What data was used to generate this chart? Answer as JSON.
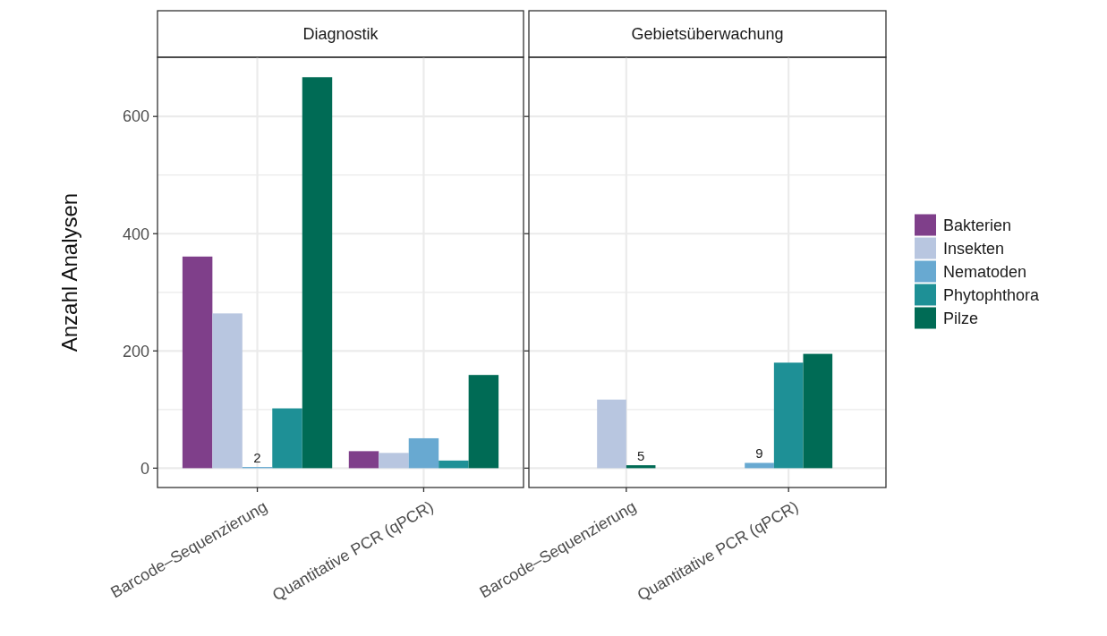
{
  "chart_data": [
    {
      "type": "bar",
      "title": "Diagnostik",
      "ylabel": "Anzahl Analysen",
      "categories": [
        "Barcode–Sequenzierung",
        "Quantitative PCR (qPCR)"
      ],
      "ylim": [
        -33,
        701
      ],
      "yticks": [
        0,
        {
          "value": 100,
          "label": null
        },
        200,
        {
          "value": 300,
          "label": null
        },
        400,
        {
          "value": 500,
          "label": null
        },
        600
      ],
      "grid": true,
      "series": [
        {
          "color": "#7f3f8a",
          "values": [
            361,
            29
          ]
        },
        {
          "color": "#b8c6e0",
          "values": [
            264,
            26
          ]
        },
        {
          "color": "#68a9d1",
          "values": [
            2,
            51
          ],
          "value_labels": [
            "2",
            null
          ]
        },
        {
          "color": "#1e9096",
          "values": [
            102,
            13
          ]
        },
        {
          "color": "#006b55",
          "values": [
            667,
            159
          ]
        }
      ]
    },
    {
      "type": "bar",
      "title": "Gebietsüberwachung",
      "categories": [
        "Barcode–Sequenzierung",
        "Quantitative PCR (qPCR)"
      ],
      "ylim": [
        -33,
        701
      ],
      "yticks": [
        0,
        {
          "value": 100,
          "label": null
        },
        200,
        {
          "value": 300,
          "label": null
        },
        400,
        {
          "value": 500,
          "label": null
        },
        600
      ],
      "tick_labels": "x",
      "grid": true,
      "legend": "right",
      "series": [
        {
          "name": "Bakterien",
          "color": "#7f3f8a",
          "values": [
            null,
            null
          ]
        },
        {
          "name": "Insekten",
          "color": "#b8c6e0",
          "values": [
            117,
            null
          ]
        },
        {
          "name": "Nematoden",
          "color": "#68a9d1",
          "values": [
            null,
            9
          ],
          "value_labels": [
            null,
            "9"
          ]
        },
        {
          "name": "Phytophthora",
          "color": "#1e9096",
          "values": [
            null,
            180
          ]
        },
        {
          "name": "Pilze",
          "color": "#006b55",
          "values": [
            5,
            195
          ],
          "value_labels": [
            "5",
            null
          ]
        }
      ]
    }
  ]
}
